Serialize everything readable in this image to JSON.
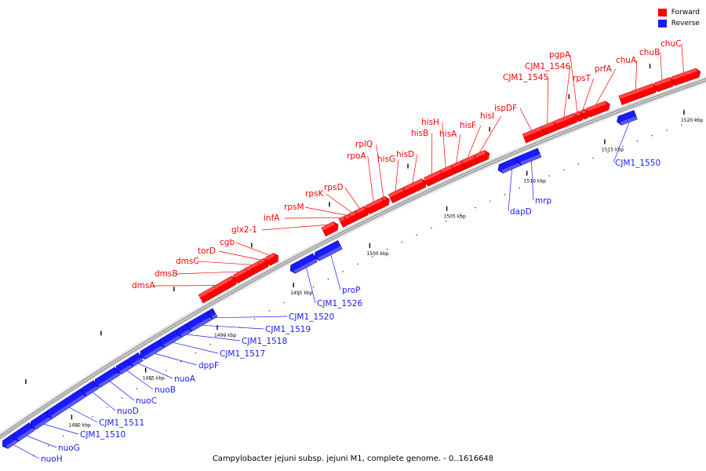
{
  "colors": {
    "forward": "#ff0000",
    "reverse": "#1a1aff",
    "backbone": "#9a9a9a"
  },
  "legend": {
    "forward_label": "Forward",
    "reverse_label": "Reverse"
  },
  "caption": "Campylobacter jejuni subsp. jejuni M1, complete genome. - 0..1616648",
  "scale_ticks": [
    {
      "label": "1480 kbp"
    },
    {
      "label": "1485 kbp"
    },
    {
      "label": "1490 kbp"
    },
    {
      "label": "1495 kbp"
    },
    {
      "label": "1500 kbp"
    },
    {
      "label": "1505 kbp"
    },
    {
      "label": "1510 kbp"
    },
    {
      "label": "1515 kbp"
    },
    {
      "label": "1520 kbp"
    }
  ],
  "genes_forward": [
    "dmsA",
    "dmsB",
    "dmsC",
    "torD",
    "cgb",
    "glx2-1",
    "infA",
    "rpsM",
    "rpsK",
    "rpsD",
    "rpoA",
    "rplQ",
    "hisG",
    "hisD",
    "hisB",
    "hisH",
    "hisA",
    "hisF",
    "hisI",
    "ispDF",
    "CJM1_1545",
    "CJM1_1546",
    "pgpA",
    "rpsT",
    "prfA",
    "chuA",
    "chuB",
    "chuC"
  ],
  "genes_reverse": [
    "nuoH",
    "nuoG",
    "CJM1_1510",
    "CJM1_1511",
    "nuoD",
    "nuoC",
    "nuoB",
    "nuoA",
    "dppF",
    "CJM1_1517",
    "CJM1_1518",
    "CJM1_1519",
    "CJM1_1520",
    "CJM1_1526",
    "proP",
    "dapD",
    "mrp",
    "CJM1_1550"
  ]
}
